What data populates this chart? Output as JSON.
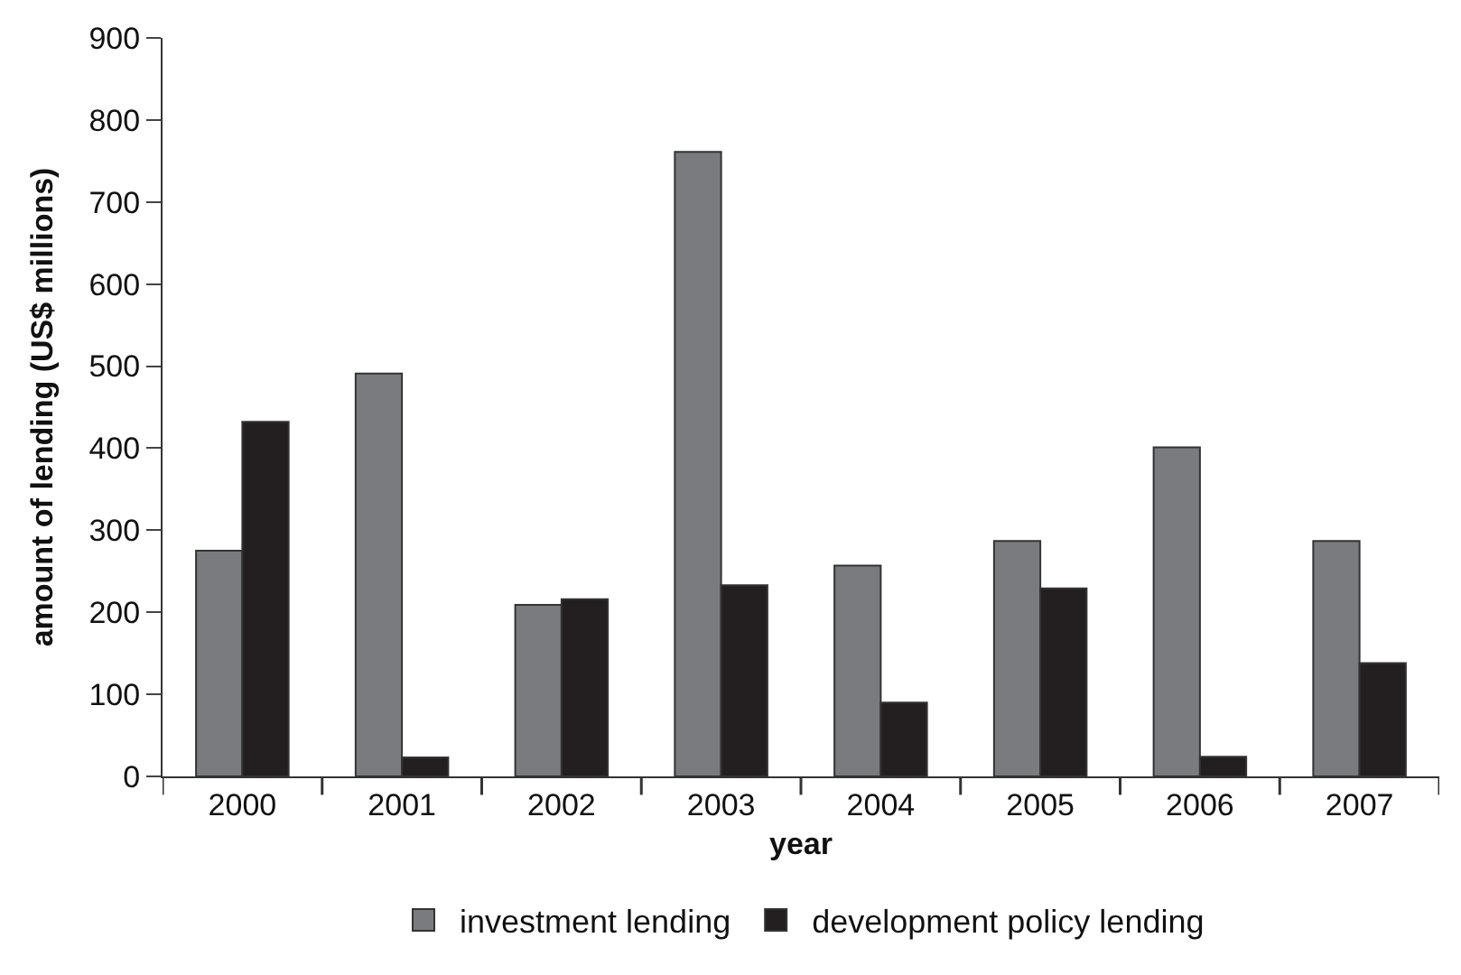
{
  "chart_data": {
    "type": "bar",
    "xlabel": "year",
    "ylabel": "amount of lending (US$ millions)",
    "categories": [
      "2000",
      "2001",
      "2002",
      "2003",
      "2004",
      "2005",
      "2006",
      "2007"
    ],
    "series": [
      {
        "name": "investment lending",
        "color": "#7a7b7f",
        "values": [
          275,
          491,
          209,
          761,
          257,
          287,
          401,
          287
        ]
      },
      {
        "name": "development policy lending",
        "color": "#231f20",
        "values": [
          432,
          23,
          216,
          233,
          90,
          229,
          24,
          138
        ]
      }
    ],
    "ylim": [
      0,
      900
    ],
    "yticks": [
      0,
      100,
      200,
      300,
      400,
      500,
      600,
      700,
      800,
      900
    ],
    "legend": "bottom"
  }
}
